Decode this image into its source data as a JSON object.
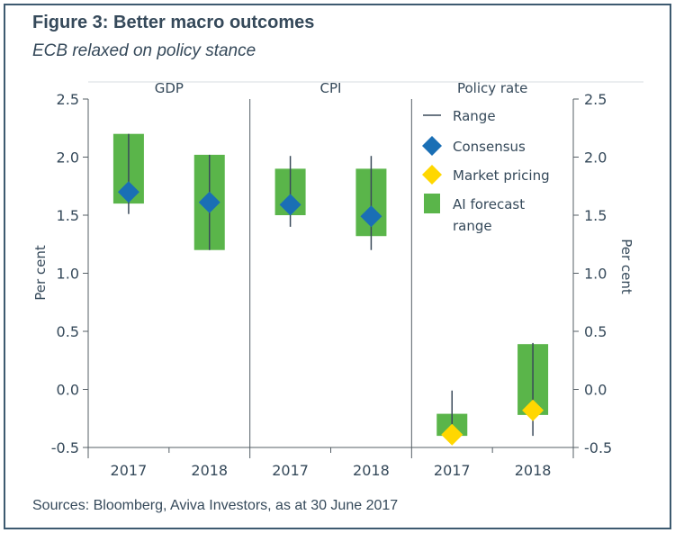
{
  "header": {
    "title": "Figure 3: Better macro outcomes",
    "subtitle": "ECB relaxed on policy stance"
  },
  "footer": {
    "source": "Sources: Bloomberg, Aviva Investors, as at 30 June 2017"
  },
  "colors": {
    "forecast_bar": "#5ab54a",
    "consensus": "#1a6fb5",
    "market_pricing": "#ffd700",
    "range_line": "#3a4a5a",
    "axis": "#555f66",
    "text": "#35495a"
  },
  "chart_data": {
    "type": "range-bar",
    "panels": [
      "GDP",
      "CPI",
      "Policy rate"
    ],
    "categories": [
      "2017",
      "2018",
      "2017",
      "2018",
      "2017",
      "2018"
    ],
    "ylabel_left": "Per cent",
    "ylabel_right": "Per cent",
    "ylim": [
      -0.5,
      2.5
    ],
    "yticks": [
      "2.5",
      "2.0",
      "1.5",
      "1.0",
      "0.5",
      "0.0",
      "-0.5"
    ],
    "ytick_values": [
      2.5,
      2.0,
      1.5,
      1.0,
      0.5,
      0.0,
      -0.5
    ],
    "series": [
      {
        "name": "AI forecast range",
        "kind": "bar",
        "low": [
          1.6,
          1.2,
          1.5,
          1.32,
          -0.4,
          -0.22
        ],
        "high": [
          2.2,
          2.02,
          1.9,
          1.9,
          -0.21,
          0.39
        ]
      },
      {
        "name": "Range",
        "kind": "whisker",
        "low": [
          1.51,
          1.2,
          1.4,
          1.2,
          -0.4,
          -0.4
        ],
        "high": [
          2.2,
          2.02,
          2.01,
          2.01,
          -0.01,
          0.4
        ]
      },
      {
        "name": "Consensus",
        "kind": "marker",
        "values": [
          1.7,
          1.61,
          1.59,
          1.49,
          null,
          null
        ]
      },
      {
        "name": "Market pricing",
        "kind": "marker",
        "values": [
          null,
          null,
          null,
          null,
          -0.39,
          -0.18
        ]
      }
    ],
    "legend": {
      "placement": "top-right",
      "items": [
        {
          "label": "Range",
          "symbol": "line"
        },
        {
          "label": "Consensus",
          "symbol": "diamond-blue"
        },
        {
          "label": "Market pricing",
          "symbol": "diamond-yellow"
        },
        {
          "label": "AI forecast",
          "label2": "range",
          "symbol": "square-green"
        }
      ]
    },
    "grid": false
  }
}
